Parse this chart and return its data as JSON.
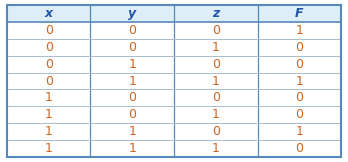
{
  "headers": [
    "x",
    "y",
    "z",
    "F"
  ],
  "rows": [
    [
      0,
      0,
      0,
      1
    ],
    [
      0,
      0,
      1,
      0
    ],
    [
      0,
      1,
      0,
      0
    ],
    [
      0,
      1,
      1,
      1
    ],
    [
      1,
      0,
      0,
      0
    ],
    [
      1,
      0,
      1,
      0
    ],
    [
      1,
      1,
      0,
      1
    ],
    [
      1,
      1,
      1,
      0
    ]
  ],
  "header_bg": "#ddeef8",
  "row_bg": "#ffffff",
  "header_text_color": "#2255aa",
  "data_text_color": "#cc6622",
  "border_color": "#5588bb",
  "line_color": "#aabbcc",
  "fig_width": 3.48,
  "fig_height": 1.62,
  "dpi": 100
}
